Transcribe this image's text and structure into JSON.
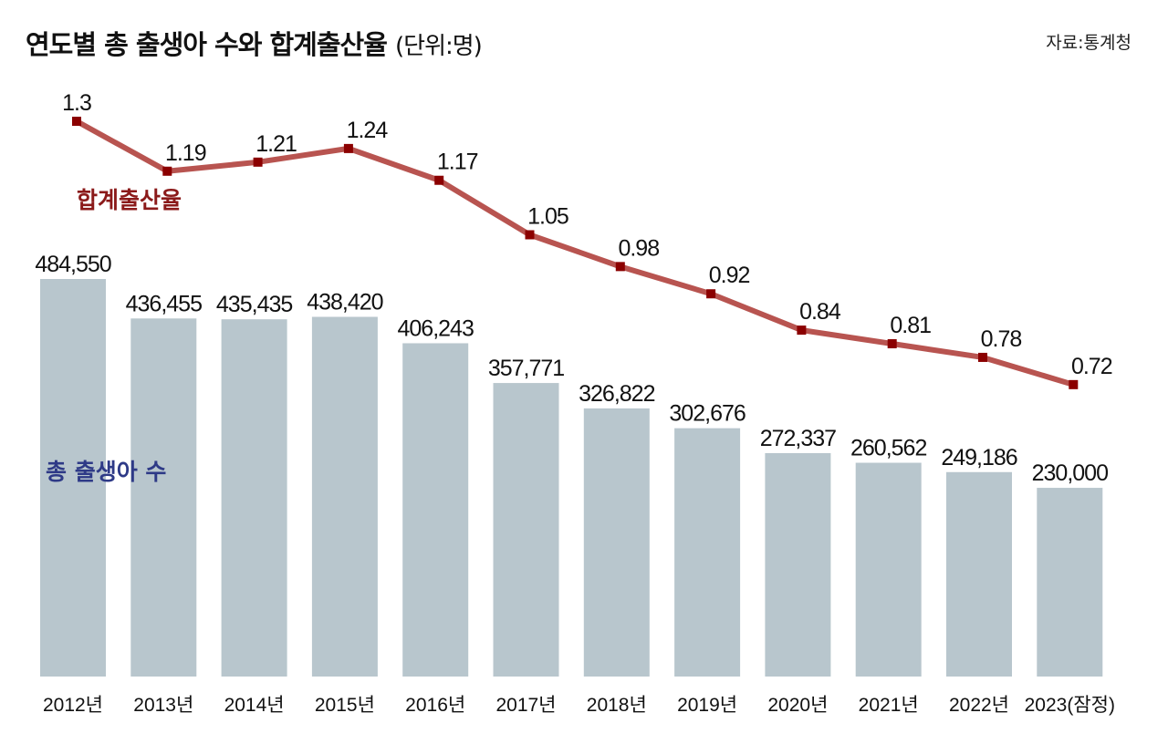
{
  "title": "연도별 총 출생아 수와 합계출산율",
  "unit": "(단위:명)",
  "source": "자료:통계청",
  "chart_data": {
    "type": "bar+line",
    "categories": [
      "2012년",
      "2013년",
      "2014년",
      "2015년",
      "2016년",
      "2017년",
      "2018년",
      "2019년",
      "2020년",
      "2021년",
      "2022년",
      "2023(잠정)"
    ],
    "series": [
      {
        "name": "총 출생아 수",
        "type": "bar",
        "color": "#b8c6cd",
        "label_color": "#2e3a87",
        "values": [
          484550,
          436455,
          435435,
          438420,
          406243,
          357771,
          326822,
          302676,
          272337,
          260562,
          249186,
          230000
        ]
      },
      {
        "name": "합계출산율",
        "type": "line",
        "color": "#b85450",
        "marker_color": "#8b0000",
        "label_color": "#8b1a1a",
        "values": [
          1.3,
          1.19,
          1.21,
          1.24,
          1.17,
          1.05,
          0.98,
          0.92,
          0.84,
          0.81,
          0.78,
          0.72
        ]
      }
    ],
    "grid": false,
    "legend": "inline labels"
  }
}
